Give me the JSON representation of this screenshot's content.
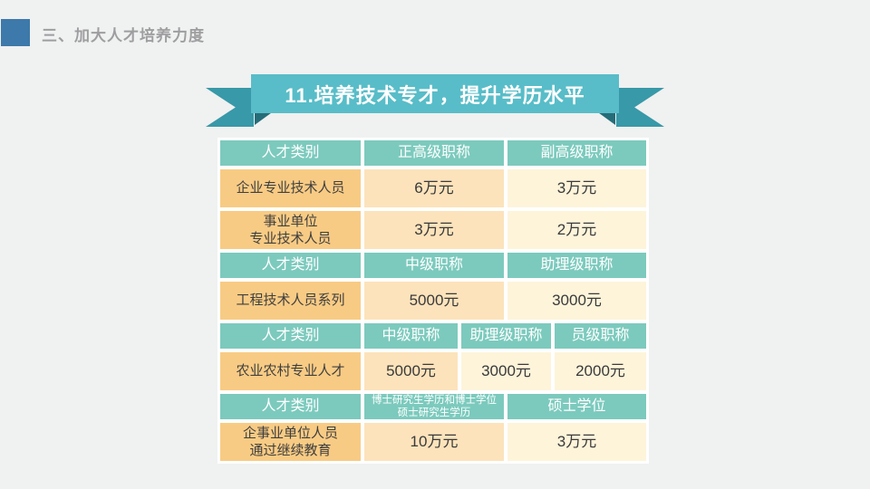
{
  "slide": {
    "section_title": "三、加大人才培养力度",
    "banner_title": "11.培养技术专才，提升学历水平"
  },
  "colors": {
    "background": "#f0f1f1",
    "accent_blue": "#3d79aa",
    "title_gray": "#9e9ea0",
    "banner_teal": "#58bdc8",
    "ribbon_tail_teal": "#3899a8",
    "ribbon_fold_teal": "#256d79",
    "table_header_teal": "#7ccabd",
    "label_orange": "#f8cb84",
    "value_peach": "#fce3bb",
    "value_cream": "#fdf4da"
  },
  "table": {
    "rows": [
      {
        "kind": "header",
        "cells": [
          "人才类别",
          "正高级职称",
          "副高级职称"
        ]
      },
      {
        "kind": "data",
        "cells": [
          "企业专业技术人员",
          "6万元",
          "3万元"
        ]
      },
      {
        "kind": "data",
        "cells": [
          "事业单位\n专业技术人员",
          "3万元",
          "2万元"
        ]
      },
      {
        "kind": "header",
        "cells": [
          "人才类别",
          "中级职称",
          "助理级职称"
        ]
      },
      {
        "kind": "data",
        "cells": [
          "工程技术人员系列",
          "5000元",
          "3000元"
        ]
      },
      {
        "kind": "header",
        "cells": [
          "人才类别",
          "中级职称",
          "助理级职称",
          "员级职称"
        ]
      },
      {
        "kind": "data",
        "cells": [
          "农业农村专业人才",
          "5000元",
          "3000元",
          "2000元"
        ]
      },
      {
        "kind": "header",
        "cells": [
          "人才类别",
          "博士研究生学历和博士学位\n硕士研究生学历",
          "硕士学位"
        ]
      },
      {
        "kind": "data",
        "cells": [
          "企事业单位人员\n通过继续教育",
          "10万元",
          "3万元"
        ]
      }
    ]
  }
}
